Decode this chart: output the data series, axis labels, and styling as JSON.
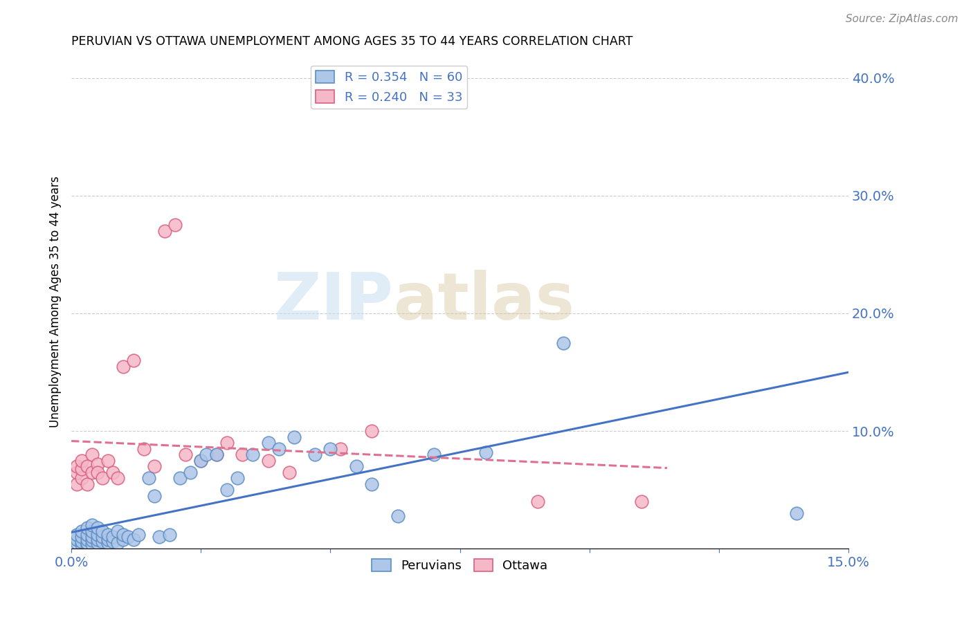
{
  "title": "PERUVIAN VS OTTAWA UNEMPLOYMENT AMONG AGES 35 TO 44 YEARS CORRELATION CHART",
  "source": "Source: ZipAtlas.com",
  "ylabel": "Unemployment Among Ages 35 to 44 years",
  "xlim": [
    0.0,
    0.15
  ],
  "ylim": [
    0.0,
    0.42
  ],
  "yticks": [
    0.0,
    0.1,
    0.2,
    0.3,
    0.4
  ],
  "yticklabels": [
    "",
    "10.0%",
    "20.0%",
    "30.0%",
    "40.0%"
  ],
  "peruvians_color": "#aec6e8",
  "ottawa_color": "#f5b8c8",
  "peruvians_edge_color": "#5b8ec4",
  "ottawa_edge_color": "#d96080",
  "trendline_peruvians_color": "#4472c4",
  "trendline_ottawa_color": "#e07090",
  "legend_r_peruvians": "R = 0.354",
  "legend_n_peruvians": "N = 60",
  "legend_r_ottawa": "R = 0.240",
  "legend_n_ottawa": "N = 33",
  "watermark_zip": "ZIP",
  "watermark_atlas": "atlas",
  "peruvians_x": [
    0.001,
    0.001,
    0.001,
    0.002,
    0.002,
    0.002,
    0.002,
    0.003,
    0.003,
    0.003,
    0.003,
    0.003,
    0.004,
    0.004,
    0.004,
    0.004,
    0.004,
    0.005,
    0.005,
    0.005,
    0.005,
    0.006,
    0.006,
    0.006,
    0.007,
    0.007,
    0.007,
    0.008,
    0.008,
    0.009,
    0.009,
    0.01,
    0.01,
    0.011,
    0.012,
    0.013,
    0.015,
    0.016,
    0.017,
    0.019,
    0.021,
    0.023,
    0.025,
    0.026,
    0.028,
    0.03,
    0.032,
    0.035,
    0.038,
    0.04,
    0.043,
    0.047,
    0.05,
    0.055,
    0.058,
    0.063,
    0.07,
    0.08,
    0.095,
    0.14
  ],
  "peruvians_y": [
    0.005,
    0.008,
    0.012,
    0.004,
    0.006,
    0.01,
    0.015,
    0.003,
    0.005,
    0.008,
    0.012,
    0.018,
    0.004,
    0.007,
    0.01,
    0.015,
    0.02,
    0.005,
    0.008,
    0.012,
    0.018,
    0.006,
    0.01,
    0.015,
    0.005,
    0.008,
    0.012,
    0.006,
    0.01,
    0.005,
    0.015,
    0.008,
    0.012,
    0.01,
    0.008,
    0.012,
    0.06,
    0.045,
    0.01,
    0.012,
    0.06,
    0.065,
    0.075,
    0.08,
    0.08,
    0.05,
    0.06,
    0.08,
    0.09,
    0.085,
    0.095,
    0.08,
    0.085,
    0.07,
    0.055,
    0.028,
    0.08,
    0.082,
    0.175,
    0.03
  ],
  "ottawa_x": [
    0.001,
    0.001,
    0.001,
    0.002,
    0.002,
    0.002,
    0.003,
    0.003,
    0.004,
    0.004,
    0.005,
    0.005,
    0.006,
    0.007,
    0.008,
    0.009,
    0.01,
    0.012,
    0.014,
    0.016,
    0.018,
    0.02,
    0.022,
    0.025,
    0.028,
    0.03,
    0.033,
    0.038,
    0.042,
    0.052,
    0.058,
    0.09,
    0.11
  ],
  "ottawa_y": [
    0.055,
    0.065,
    0.07,
    0.06,
    0.068,
    0.075,
    0.055,
    0.07,
    0.065,
    0.08,
    0.072,
    0.065,
    0.06,
    0.075,
    0.065,
    0.06,
    0.155,
    0.16,
    0.085,
    0.07,
    0.27,
    0.275,
    0.08,
    0.075,
    0.08,
    0.09,
    0.08,
    0.075,
    0.065,
    0.085,
    0.1,
    0.04,
    0.04
  ]
}
